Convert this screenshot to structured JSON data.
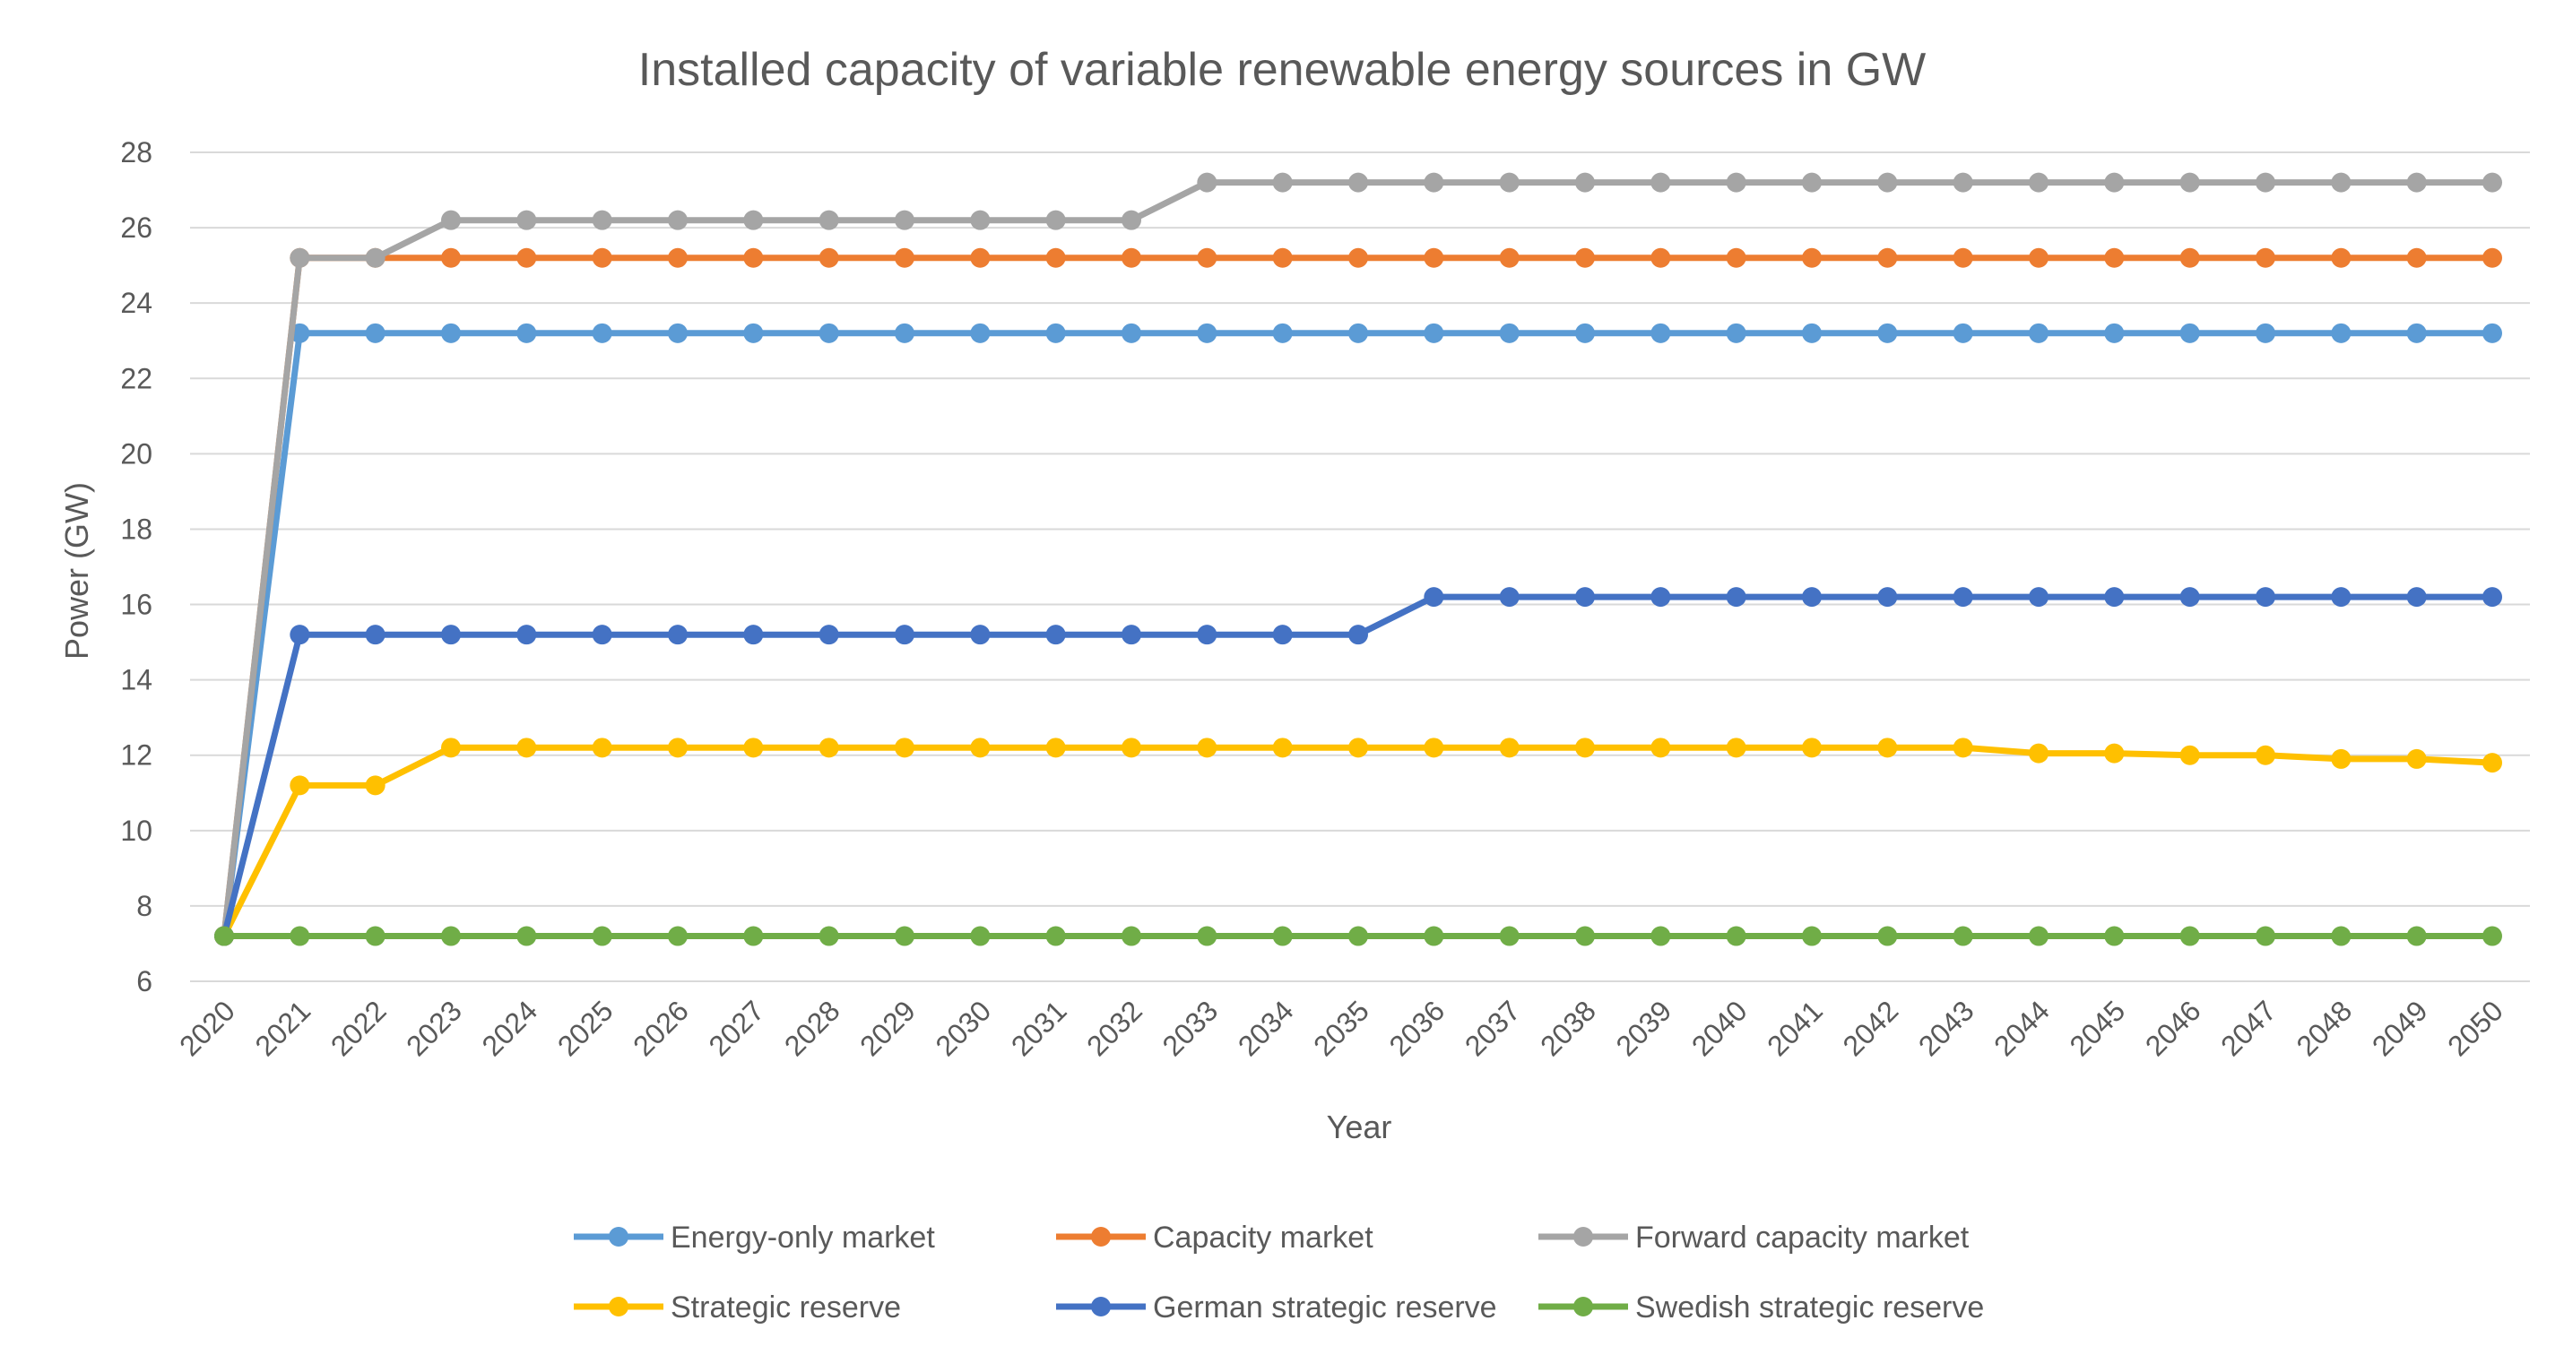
{
  "chart_data": {
    "type": "line",
    "title": "Installed capacity of variable renewable energy sources in GW",
    "xlabel": "Year",
    "ylabel": "Power (GW)",
    "ylim": [
      6,
      28
    ],
    "yticks": [
      6,
      8,
      10,
      12,
      14,
      16,
      18,
      20,
      22,
      24,
      26,
      28
    ],
    "grid": true,
    "legend_position": "bottom",
    "x": [
      "2020",
      "2021",
      "2022",
      "2023",
      "2024",
      "2025",
      "2026",
      "2027",
      "2028",
      "2029",
      "2030",
      "2031",
      "2032",
      "2033",
      "2034",
      "2035",
      "2036",
      "2037",
      "2038",
      "2039",
      "2040",
      "2041",
      "2042",
      "2043",
      "2044",
      "2045",
      "2046",
      "2047",
      "2048",
      "2049",
      "2050"
    ],
    "series": [
      {
        "name": "Energy-only market",
        "color": "#5b9bd5",
        "values": [
          7.2,
          23.2,
          23.2,
          23.2,
          23.2,
          23.2,
          23.2,
          23.2,
          23.2,
          23.2,
          23.2,
          23.2,
          23.2,
          23.2,
          23.2,
          23.2,
          23.2,
          23.2,
          23.2,
          23.2,
          23.2,
          23.2,
          23.2,
          23.2,
          23.2,
          23.2,
          23.2,
          23.2,
          23.2,
          23.2,
          23.2
        ]
      },
      {
        "name": "Capacity market",
        "color": "#ed7d31",
        "values": [
          7.2,
          25.2,
          25.2,
          25.2,
          25.2,
          25.2,
          25.2,
          25.2,
          25.2,
          25.2,
          25.2,
          25.2,
          25.2,
          25.2,
          25.2,
          25.2,
          25.2,
          25.2,
          25.2,
          25.2,
          25.2,
          25.2,
          25.2,
          25.2,
          25.2,
          25.2,
          25.2,
          25.2,
          25.2,
          25.2,
          25.2
        ]
      },
      {
        "name": "Forward capacity market",
        "color": "#a5a5a5",
        "values": [
          7.2,
          25.2,
          25.2,
          26.2,
          26.2,
          26.2,
          26.2,
          26.2,
          26.2,
          26.2,
          26.2,
          26.2,
          26.2,
          27.2,
          27.2,
          27.2,
          27.2,
          27.2,
          27.2,
          27.2,
          27.2,
          27.2,
          27.2,
          27.2,
          27.2,
          27.2,
          27.2,
          27.2,
          27.2,
          27.2,
          27.2
        ]
      },
      {
        "name": "Strategic reserve",
        "color": "#ffc000",
        "values": [
          7.2,
          11.2,
          11.2,
          12.2,
          12.2,
          12.2,
          12.2,
          12.2,
          12.2,
          12.2,
          12.2,
          12.2,
          12.2,
          12.2,
          12.2,
          12.2,
          12.2,
          12.2,
          12.2,
          12.2,
          12.2,
          12.2,
          12.2,
          12.2,
          12.05,
          12.05,
          12.0,
          12.0,
          11.9,
          11.9,
          11.8
        ]
      },
      {
        "name": "German strategic reserve",
        "color": "#4472c4",
        "values": [
          7.2,
          15.2,
          15.2,
          15.2,
          15.2,
          15.2,
          15.2,
          15.2,
          15.2,
          15.2,
          15.2,
          15.2,
          15.2,
          15.2,
          15.2,
          15.2,
          16.2,
          16.2,
          16.2,
          16.2,
          16.2,
          16.2,
          16.2,
          16.2,
          16.2,
          16.2,
          16.2,
          16.2,
          16.2,
          16.2,
          16.2
        ]
      },
      {
        "name": "Swedish strategic reserve",
        "color": "#70ad47",
        "values": [
          7.2,
          7.2,
          7.2,
          7.2,
          7.2,
          7.2,
          7.2,
          7.2,
          7.2,
          7.2,
          7.2,
          7.2,
          7.2,
          7.2,
          7.2,
          7.2,
          7.2,
          7.2,
          7.2,
          7.2,
          7.2,
          7.2,
          7.2,
          7.2,
          7.2,
          7.2,
          7.2,
          7.2,
          7.2,
          7.2,
          7.2
        ]
      }
    ]
  }
}
